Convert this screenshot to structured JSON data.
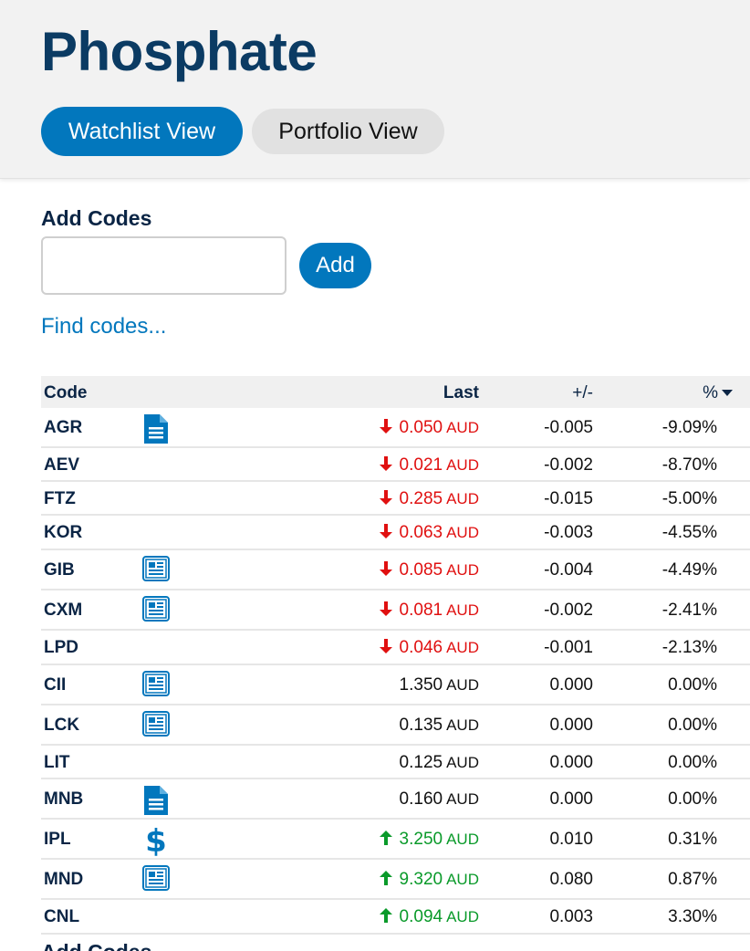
{
  "header": {
    "title": "Phosphate",
    "watchlist_label": "Watchlist View",
    "portfolio_label": "Portfolio View"
  },
  "add_codes": {
    "label": "Add Codes",
    "input_value": "",
    "add_label": "Add",
    "find_link": "Find codes..."
  },
  "table": {
    "columns": {
      "code": "Code",
      "last": "Last",
      "change": "+/-",
      "percent": "%"
    },
    "rows": [
      {
        "code": "AGR",
        "icon": "document-icon",
        "dir": "down",
        "last": "0.050",
        "cur": "AUD",
        "change": "-0.005",
        "percent": "-9.09%"
      },
      {
        "code": "AEV",
        "icon": "",
        "dir": "down",
        "last": "0.021",
        "cur": "AUD",
        "change": "-0.002",
        "percent": "-8.70%"
      },
      {
        "code": "FTZ",
        "icon": "",
        "dir": "down",
        "last": "0.285",
        "cur": "AUD",
        "change": "-0.015",
        "percent": "-5.00%"
      },
      {
        "code": "KOR",
        "icon": "",
        "dir": "down",
        "last": "0.063",
        "cur": "AUD",
        "change": "-0.003",
        "percent": "-4.55%"
      },
      {
        "code": "GIB",
        "icon": "newspaper-icon",
        "dir": "down",
        "last": "0.085",
        "cur": "AUD",
        "change": "-0.004",
        "percent": "-4.49%"
      },
      {
        "code": "CXM",
        "icon": "newspaper-icon",
        "dir": "down",
        "last": "0.081",
        "cur": "AUD",
        "change": "-0.002",
        "percent": "-2.41%"
      },
      {
        "code": "LPD",
        "icon": "",
        "dir": "down",
        "last": "0.046",
        "cur": "AUD",
        "change": "-0.001",
        "percent": "-2.13%"
      },
      {
        "code": "CII",
        "icon": "newspaper-icon",
        "dir": "neutral",
        "last": "1.350",
        "cur": "AUD",
        "change": "0.000",
        "percent": "0.00%"
      },
      {
        "code": "LCK",
        "icon": "newspaper-icon",
        "dir": "neutral",
        "last": "0.135",
        "cur": "AUD",
        "change": "0.000",
        "percent": "0.00%"
      },
      {
        "code": "LIT",
        "icon": "",
        "dir": "neutral",
        "last": "0.125",
        "cur": "AUD",
        "change": "0.000",
        "percent": "0.00%"
      },
      {
        "code": "MNB",
        "icon": "document-icon",
        "dir": "neutral",
        "last": "0.160",
        "cur": "AUD",
        "change": "0.000",
        "percent": "0.00%"
      },
      {
        "code": "IPL",
        "icon": "dollar-icon",
        "dir": "up",
        "last": "3.250",
        "cur": "AUD",
        "change": "0.010",
        "percent": "0.31%"
      },
      {
        "code": "MND",
        "icon": "newspaper-icon",
        "dir": "up",
        "last": "9.320",
        "cur": "AUD",
        "change": "0.080",
        "percent": "0.87%"
      },
      {
        "code": "CNL",
        "icon": "",
        "dir": "up",
        "last": "0.094",
        "cur": "AUD",
        "change": "0.003",
        "percent": "3.30%"
      }
    ]
  },
  "footer": {
    "label": "Add Codes"
  },
  "colors": {
    "primary": "#0277bd",
    "title": "#0b3b63",
    "down": "#e01010",
    "up": "#0a9a2a"
  }
}
